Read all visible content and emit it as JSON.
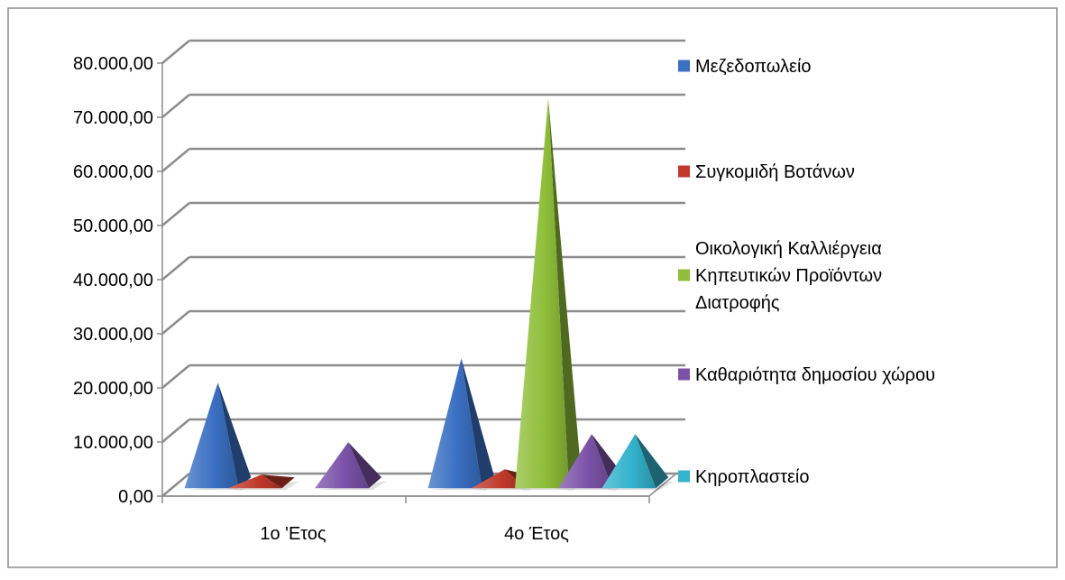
{
  "chart_data": {
    "type": "bar",
    "style": "3d-pyramid",
    "title": "",
    "xlabel": "",
    "ylabel": "",
    "categories": [
      "1ο 'Ετος",
      "4ο Έτος"
    ],
    "ylim": [
      0,
      80000
    ],
    "y_ticks": [
      {
        "value": 0,
        "label": "0,00"
      },
      {
        "value": 10000,
        "label": "10.000,00"
      },
      {
        "value": 20000,
        "label": "20.000,00"
      },
      {
        "value": 30000,
        "label": "30.000,00"
      },
      {
        "value": 40000,
        "label": "40.000,00"
      },
      {
        "value": 50000,
        "label": "50.000,00"
      },
      {
        "value": 60000,
        "label": "60.000,00"
      },
      {
        "value": 70000,
        "label": "70.000,00"
      },
      {
        "value": 80000,
        "label": "80.000,00"
      }
    ],
    "grid": true,
    "legend_position": "right",
    "series": [
      {
        "name": "Μεζεδοπωλείο",
        "color": "#3a6fc2",
        "values": [
          19500,
          24000
        ]
      },
      {
        "name": "Συγκομιδή Βοτάνων",
        "color": "#c0392b",
        "values": [
          2500,
          3500
        ]
      },
      {
        "name": "Οικολογική Καλλιέργεια Κηπευτικών Προϊόντων Διατροφής",
        "name_lines": [
          "Οικολογική Καλλιέργεια",
          "Κηπευτικών Προϊόντων",
          "Διατροφής"
        ],
        "color": "#8fbf3a",
        "values": [
          0,
          72000
        ]
      },
      {
        "name": "Καθαριότητα δημοσίου χώρου",
        "color": "#7b52a8",
        "values": [
          8500,
          10000
        ]
      },
      {
        "name": "Κηροπλαστείο",
        "color": "#33b3cc",
        "values": [
          0,
          10000
        ]
      }
    ]
  }
}
